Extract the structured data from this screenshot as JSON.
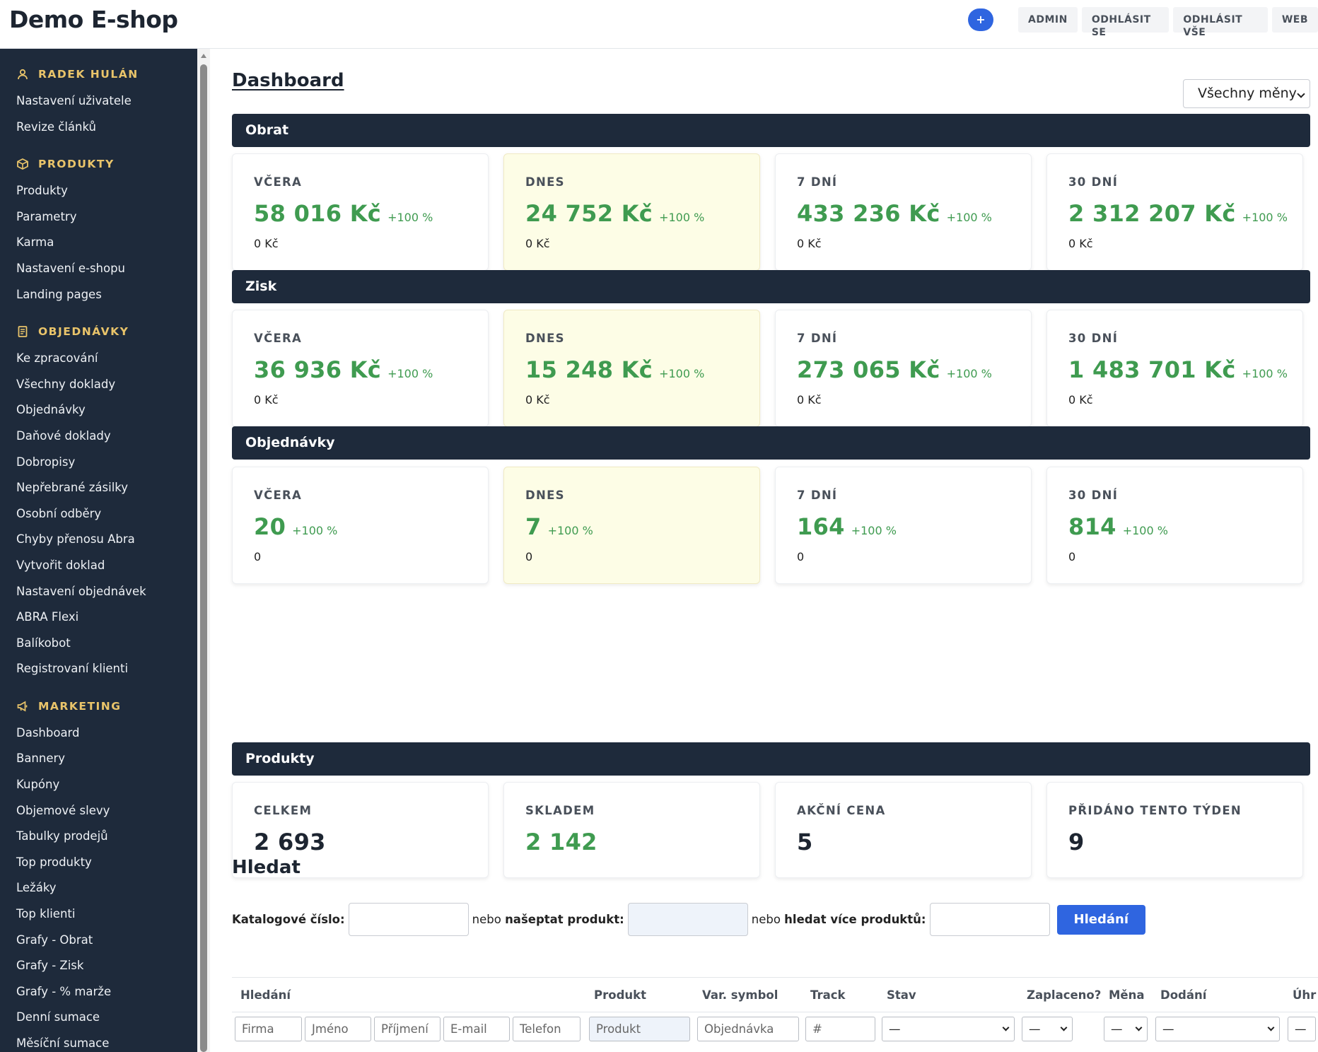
{
  "header": {
    "brand": "Demo E-shop",
    "plus_label": "+",
    "nav": [
      "ADMIN",
      "ODHLÁSIT SE",
      "ODHLÁSIT VŠE",
      "WEB"
    ]
  },
  "sidebar": {
    "groups": [
      {
        "title": "RADEK HULÁN",
        "icon": "user-icon",
        "items": [
          "Nastavení uživatele",
          "Revize článků"
        ]
      },
      {
        "title": "PRODUKTY",
        "icon": "box-icon",
        "items": [
          "Produkty",
          "Parametry",
          "Karma",
          "Nastavení e-shopu",
          "Landing pages"
        ]
      },
      {
        "title": "OBJEDNÁVKY",
        "icon": "document-icon",
        "items": [
          "Ke zpracování",
          "Všechny doklady",
          "Objednávky",
          "Daňové doklady",
          "Dobropisy",
          "Nepřebrané zásilky",
          "Osobní odběry",
          "Chyby přenosu Abra",
          "Vytvořit doklad",
          "Nastavení objednávek",
          "ABRA Flexi",
          "Balíkobot",
          "Registrovaní klienti"
        ]
      },
      {
        "title": "MARKETING",
        "icon": "megaphone-icon",
        "items": [
          "Dashboard",
          "Bannery",
          "Kupóny",
          "Objemové slevy",
          "Tabulky prodejů",
          "Top produkty",
          "Ležáky",
          "Top klienti",
          "Grafy - Obrat",
          "Grafy - Zisk",
          "Grafy - % marže",
          "Denní sumace",
          "Měsíční sumace"
        ]
      }
    ]
  },
  "main": {
    "title": "Dashboard",
    "currency_select": "Všechny měny",
    "sections": [
      {
        "title": "Obrat",
        "cards": [
          {
            "label": "VČERA",
            "value": "58 016 Kč",
            "pct": "+100 %",
            "sub": "0 Kč"
          },
          {
            "label": "DNES",
            "value": "24 752 Kč",
            "pct": "+100 %",
            "sub": "0 Kč"
          },
          {
            "label": "7 DNÍ",
            "value": "433 236 Kč",
            "pct": "+100 %",
            "sub": "0 Kč"
          },
          {
            "label": "30 DNÍ",
            "value": "2 312 207 Kč",
            "pct": "+100 %",
            "sub": "0 Kč"
          }
        ]
      },
      {
        "title": "Zisk",
        "cards": [
          {
            "label": "VČERA",
            "value": "36 936 Kč",
            "pct": "+100 %",
            "sub": "0 Kč"
          },
          {
            "label": "DNES",
            "value": "15 248 Kč",
            "pct": "+100 %",
            "sub": "0 Kč"
          },
          {
            "label": "7 DNÍ",
            "value": "273 065 Kč",
            "pct": "+100 %",
            "sub": "0 Kč"
          },
          {
            "label": "30 DNÍ",
            "value": "1 483 701 Kč",
            "pct": "+100 %",
            "sub": "0 Kč"
          }
        ]
      },
      {
        "title": "Objednávky",
        "cards": [
          {
            "label": "VČERA",
            "value": "20",
            "pct": "+100 %",
            "sub": "0"
          },
          {
            "label": "DNES",
            "value": "7",
            "pct": "+100 %",
            "sub": "0"
          },
          {
            "label": "7 DNÍ",
            "value": "164",
            "pct": "+100 %",
            "sub": "0"
          },
          {
            "label": "30 DNÍ",
            "value": "814",
            "pct": "+100 %",
            "sub": "0"
          }
        ]
      }
    ],
    "products": {
      "title": "Produkty",
      "cards": [
        {
          "label": "CELKEM",
          "value": "2 693"
        },
        {
          "label": "SKLADEM",
          "value": "2 142"
        },
        {
          "label": "AKČNÍ CENA",
          "value": "5"
        },
        {
          "label": "PŘIDÁNO TENTO TÝDEN",
          "value": "9"
        }
      ]
    },
    "search": {
      "title": "Hledat",
      "catalog_label": "Katalogové číslo:",
      "or1": "nebo",
      "suggest_label": "našeptat produkt:",
      "or2": "nebo",
      "multi_label": "hledat více produktů:",
      "button": "Hledání"
    },
    "filter": {
      "headers": {
        "search": "Hledání",
        "product": "Produkt",
        "var_symbol": "Var. symbol",
        "track": "Track",
        "status": "Stav",
        "paid": "Zaplaceno?",
        "currency": "Měna",
        "delivery": "Dodání",
        "payment": "Úhr"
      },
      "placeholders": {
        "company": "Firma",
        "first_name": "Jméno",
        "last_name": "Příjmení",
        "email": "E-mail",
        "phone": "Telefon",
        "product": "Produkt",
        "order": "Objednávka",
        "track": "#"
      },
      "dash": "—"
    }
  }
}
